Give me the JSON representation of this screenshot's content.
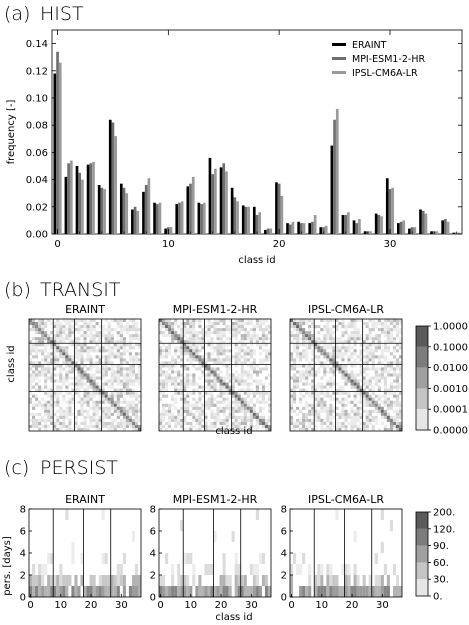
{
  "colors": {
    "ERAINT": "#000000",
    "MPI": "#6e6e6e",
    "IPSL": "#9a9a9a"
  },
  "chart_data": [
    {
      "panel_label": "(a)",
      "title": "HIST",
      "type": "bar",
      "xlabel": "class id",
      "ylabel": "frequency [-]",
      "xlim": [
        -0.5,
        36.5
      ],
      "ylim": [
        0,
        0.15
      ],
      "xticks": [
        "0",
        "10",
        "20",
        "30"
      ],
      "yticks": [
        "0.00",
        "0.02",
        "0.04",
        "0.06",
        "0.08",
        "0.10",
        "0.12",
        "0.14"
      ],
      "legend_position": "top-right",
      "categories": [
        0,
        1,
        2,
        3,
        4,
        5,
        6,
        7,
        8,
        9,
        10,
        11,
        12,
        13,
        14,
        15,
        16,
        17,
        18,
        19,
        20,
        21,
        22,
        23,
        24,
        25,
        26,
        27,
        28,
        29,
        30,
        31,
        32,
        33,
        34,
        35,
        36
      ],
      "series": [
        {
          "name": "ERAINT",
          "values": [
            0.118,
            0.042,
            0.05,
            0.051,
            0.036,
            0.084,
            0.037,
            0.018,
            0.031,
            0.023,
            0.004,
            0.022,
            0.035,
            0.023,
            0.056,
            0.049,
            0.034,
            0.021,
            0.02,
            0.003,
            0.038,
            0.008,
            0.009,
            0.008,
            0.005,
            0.065,
            0.014,
            0.01,
            0.002,
            0.015,
            0.041,
            0.008,
            0.004,
            0.018,
            0.002,
            0.01,
            0.001
          ]
        },
        {
          "name": "MPI-ESM1-2-HR",
          "values": [
            0.134,
            0.052,
            0.045,
            0.052,
            0.034,
            0.082,
            0.034,
            0.02,
            0.036,
            0.022,
            0.005,
            0.023,
            0.037,
            0.022,
            0.044,
            0.052,
            0.027,
            0.02,
            0.014,
            0.004,
            0.037,
            0.007,
            0.008,
            0.009,
            0.005,
            0.084,
            0.014,
            0.008,
            0.002,
            0.014,
            0.033,
            0.009,
            0.005,
            0.017,
            0.002,
            0.011,
            0.001
          ]
        },
        {
          "name": "IPSL-CM6A-LR",
          "values": [
            0.126,
            0.054,
            0.04,
            0.053,
            0.033,
            0.072,
            0.03,
            0.017,
            0.041,
            0.023,
            0.005,
            0.024,
            0.042,
            0.023,
            0.048,
            0.046,
            0.024,
            0.02,
            0.016,
            0.004,
            0.028,
            0.009,
            0.008,
            0.014,
            0.006,
            0.092,
            0.016,
            0.011,
            0.002,
            0.013,
            0.034,
            0.01,
            0.005,
            0.015,
            0.002,
            0.009,
            0.001
          ]
        }
      ]
    },
    {
      "panel_label": "(b)",
      "title": "TRANSIT",
      "type": "heatmap",
      "xlabel": "class id",
      "ylabel": "class id",
      "subplots": [
        "ERAINT",
        "MPI-ESM1-2-HR",
        "IPSL-CM6A-LR"
      ],
      "colorbar_ticks": [
        "1.0000",
        "0.1000",
        "0.0100",
        "0.0010",
        "0.0001",
        "0.0000"
      ],
      "grid_size": 37,
      "block_boundaries": [
        8,
        15,
        24
      ]
    },
    {
      "panel_label": "(c)",
      "title": "PERSIST",
      "type": "heatmap",
      "xlabel": "class id",
      "ylabel": "pers. [days]",
      "subplots": [
        "ERAINT",
        "MPI-ESM1-2-HR",
        "IPSL-CM6A-LR"
      ],
      "xticks": [
        "0",
        "10",
        "20",
        "30"
      ],
      "yticks": [
        "0",
        "2",
        "4",
        "6",
        "8"
      ],
      "colorbar_ticks": [
        "200.",
        "120.",
        "90.",
        "60.",
        "30.",
        "0."
      ],
      "block_boundaries": [
        8,
        18,
        27
      ]
    }
  ]
}
